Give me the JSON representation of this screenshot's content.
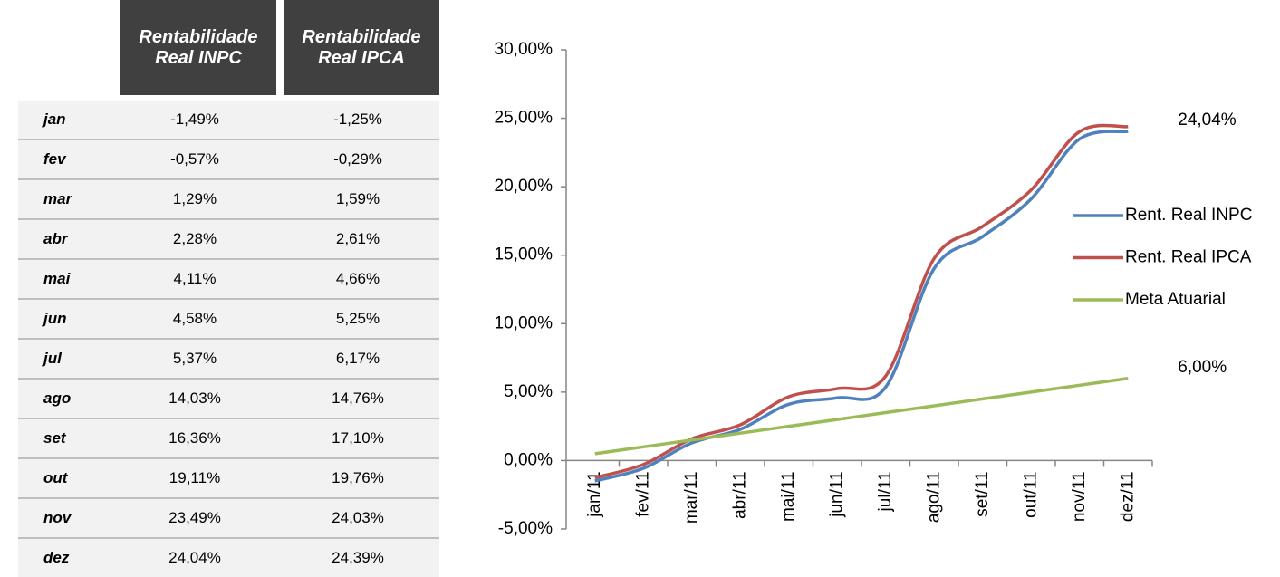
{
  "table": {
    "columns": [
      "Rentabilidade Real INPC",
      "Rentabilidade Real IPCA"
    ],
    "rows": [
      [
        "jan",
        "-1,49%",
        "-1,25%"
      ],
      [
        "fev",
        "-0,57%",
        "-0,29%"
      ],
      [
        "mar",
        "1,29%",
        "1,59%"
      ],
      [
        "abr",
        "2,28%",
        "2,61%"
      ],
      [
        "mai",
        "4,11%",
        "4,66%"
      ],
      [
        "jun",
        "4,58%",
        "5,25%"
      ],
      [
        "jul",
        "5,37%",
        "6,17%"
      ],
      [
        "ago",
        "14,03%",
        "14,76%"
      ],
      [
        "set",
        "16,36%",
        "17,10%"
      ],
      [
        "out",
        "19,11%",
        "19,76%"
      ],
      [
        "nov",
        "23,49%",
        "24,03%"
      ],
      [
        "dez",
        "24,04%",
        "24,39%"
      ]
    ]
  },
  "chart_data": {
    "type": "line",
    "categories": [
      "jan/11",
      "fev/11",
      "mar/11",
      "abr/11",
      "mai/11",
      "jun/11",
      "jul/11",
      "ago/11",
      "set/11",
      "out/11",
      "nov/11",
      "dez/11"
    ],
    "series": [
      {
        "name": "Rent. Real INPC",
        "color": "#4f81bd",
        "values": [
          -1.49,
          -0.57,
          1.29,
          2.28,
          4.11,
          4.58,
          5.37,
          14.03,
          16.36,
          19.11,
          23.49,
          24.04
        ],
        "value_labels": [
          null,
          null,
          null,
          null,
          null,
          null,
          null,
          null,
          null,
          null,
          null,
          "24,04%"
        ]
      },
      {
        "name": "Rent. Real IPCA",
        "color": "#c0504d",
        "values": [
          -1.25,
          -0.29,
          1.59,
          2.61,
          4.66,
          5.25,
          6.17,
          14.76,
          17.1,
          19.76,
          24.03,
          24.39
        ]
      },
      {
        "name": "Meta Atuarial",
        "color": "#9bbb59",
        "values": [
          0.5,
          1.0,
          1.5,
          2.0,
          2.5,
          3.0,
          3.5,
          4.0,
          4.5,
          5.0,
          5.5,
          6.0
        ],
        "value_labels": [
          null,
          null,
          null,
          null,
          null,
          null,
          null,
          null,
          null,
          null,
          null,
          "6,00%"
        ]
      }
    ],
    "ylim": [
      -5,
      30
    ],
    "yticks": [
      {
        "value": -5,
        "label": "-5,00%"
      },
      {
        "value": 0,
        "label": "0,00%"
      },
      {
        "value": 5,
        "label": "5,00%"
      },
      {
        "value": 10,
        "label": "10,00%"
      },
      {
        "value": 15,
        "label": "15,00%"
      },
      {
        "value": 20,
        "label": "20,00%"
      },
      {
        "value": 25,
        "label": "25,00%"
      },
      {
        "value": 30,
        "label": "30,00%"
      }
    ],
    "grid": false,
    "legend": "right"
  }
}
